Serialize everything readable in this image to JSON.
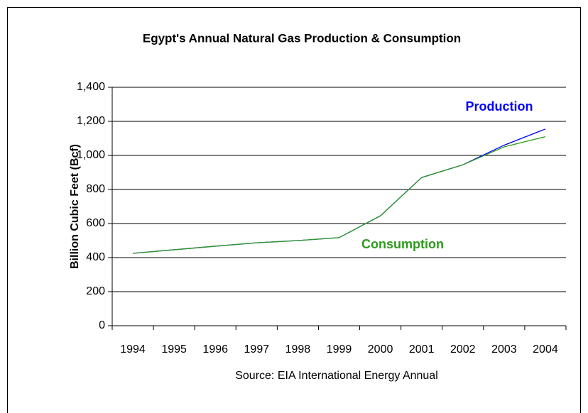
{
  "chart_data": {
    "type": "line",
    "title": "Egypt's Annual Natural Gas Production & Consumption",
    "y_label": "Billion Cubic Feet (Bcf)",
    "source": "Source: EIA International Energy Annual",
    "categories": [
      "1994",
      "1995",
      "1996",
      "1997",
      "1998",
      "1999",
      "2000",
      "2001",
      "2002",
      "2003",
      "2004"
    ],
    "series": [
      {
        "name": "Production",
        "color": "#0000ff",
        "values": [
          425,
          446,
          467,
          487,
          500,
          517,
          645,
          870,
          945,
          1060,
          1155
        ]
      },
      {
        "name": "Consumption",
        "color": "#2e9a1e",
        "values": [
          425,
          446,
          467,
          487,
          500,
          517,
          645,
          870,
          945,
          1050,
          1110
        ]
      }
    ],
    "ylim": [
      0,
      1400
    ],
    "yticks": [
      0,
      200,
      400,
      600,
      800,
      {
        "value": 1000,
        "label": "1,000"
      },
      {
        "value": 1200,
        "label": "1,200"
      },
      {
        "value": 1400,
        "label": "1,400"
      }
    ],
    "grid": true
  }
}
